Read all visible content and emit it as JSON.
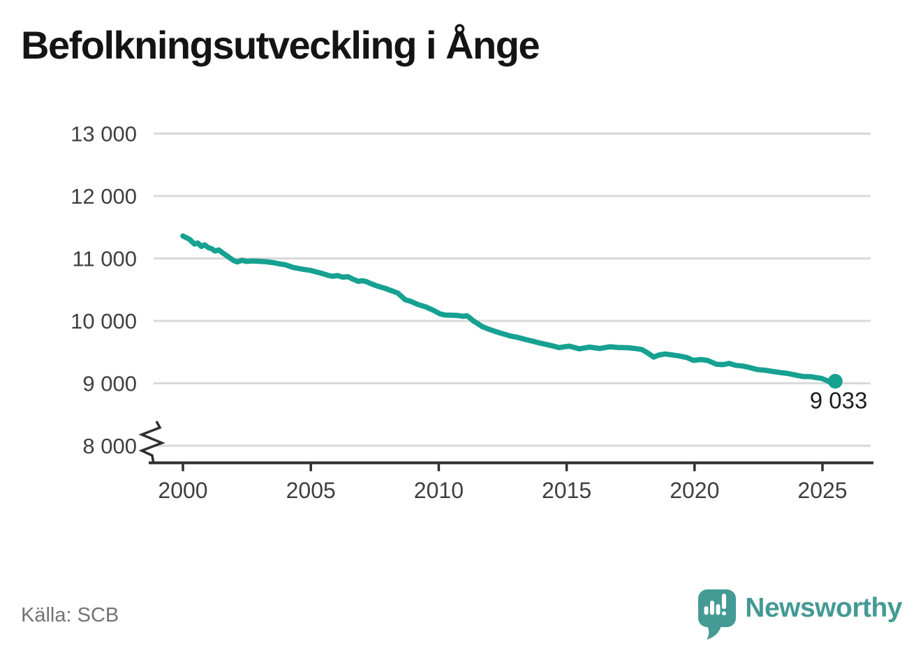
{
  "header": {
    "title": "Befolkningsutveckling i Ånge"
  },
  "footer": {
    "source": "Källa: SCB",
    "brand": "Newsworthy"
  },
  "colors": {
    "line": "#16a191",
    "grid": "#d9d9d9",
    "axis": "#2f2f2f",
    "tick_text": "#3f3f3f",
    "title_text": "#141414",
    "source_text": "#737373",
    "end_label_text": "#1d1d1d",
    "logo": "#449a94",
    "background": "#ffffff"
  },
  "chart_data": {
    "type": "line",
    "title": "Befolkningsutveckling i Ånge",
    "source": "Källa: SCB",
    "xlabel": "",
    "ylabel": "",
    "xlim": [
      1998.7,
      2026.9
    ],
    "ylim": [
      8000,
      13000
    ],
    "y_axis_break": true,
    "grid": "horizontal",
    "legend": "none",
    "x_ticks": [
      {
        "value": 2000,
        "label": "2000"
      },
      {
        "value": 2005,
        "label": "2005"
      },
      {
        "value": 2010,
        "label": "2010"
      },
      {
        "value": 2015,
        "label": "2015"
      },
      {
        "value": 2020,
        "label": "2020"
      },
      {
        "value": 2025,
        "label": "2025"
      }
    ],
    "y_ticks": [
      {
        "value": 13000,
        "label": "13 000"
      },
      {
        "value": 12000,
        "label": "12 000"
      },
      {
        "value": 11000,
        "label": "11 000"
      },
      {
        "value": 10000,
        "label": "10 000"
      },
      {
        "value": 9000,
        "label": "9 000"
      },
      {
        "value": 8000,
        "label": "8 000"
      }
    ],
    "series": [
      {
        "color": "#16a191",
        "end_marker": true,
        "end_label": "9 033",
        "end_value": 9033,
        "points": [
          [
            2000.0,
            11360
          ],
          [
            2000.26,
            11306
          ],
          [
            2000.45,
            11230
          ],
          [
            2000.58,
            11248
          ],
          [
            2000.72,
            11192
          ],
          [
            2000.85,
            11218
          ],
          [
            2001.0,
            11172
          ],
          [
            2001.13,
            11154
          ],
          [
            2001.26,
            11117
          ],
          [
            2001.4,
            11136
          ],
          [
            2001.58,
            11080
          ],
          [
            2001.72,
            11042
          ],
          [
            2001.86,
            11000
          ],
          [
            2002.0,
            10963
          ],
          [
            2002.13,
            10944
          ],
          [
            2002.3,
            10970
          ],
          [
            2002.5,
            10952
          ],
          [
            2002.7,
            10960
          ],
          [
            2003.0,
            10954
          ],
          [
            2003.25,
            10948
          ],
          [
            2003.55,
            10932
          ],
          [
            2003.8,
            10912
          ],
          [
            2004.0,
            10898
          ],
          [
            2004.3,
            10857
          ],
          [
            2004.7,
            10826
          ],
          [
            2005.0,
            10808
          ],
          [
            2005.4,
            10764
          ],
          [
            2005.7,
            10726
          ],
          [
            2005.85,
            10714
          ],
          [
            2006.05,
            10726
          ],
          [
            2006.25,
            10700
          ],
          [
            2006.45,
            10708
          ],
          [
            2006.65,
            10668
          ],
          [
            2006.85,
            10634
          ],
          [
            2007.0,
            10642
          ],
          [
            2007.15,
            10632
          ],
          [
            2007.35,
            10596
          ],
          [
            2007.6,
            10558
          ],
          [
            2007.9,
            10522
          ],
          [
            2008.15,
            10484
          ],
          [
            2008.4,
            10446
          ],
          [
            2008.55,
            10390
          ],
          [
            2008.7,
            10336
          ],
          [
            2008.9,
            10314
          ],
          [
            2009.2,
            10260
          ],
          [
            2009.5,
            10222
          ],
          [
            2009.8,
            10168
          ],
          [
            2010.05,
            10112
          ],
          [
            2010.25,
            10094
          ],
          [
            2010.5,
            10090
          ],
          [
            2010.75,
            10086
          ],
          [
            2010.95,
            10074
          ],
          [
            2011.1,
            10082
          ],
          [
            2011.2,
            10054
          ],
          [
            2011.35,
            10000
          ],
          [
            2011.5,
            9962
          ],
          [
            2011.7,
            9908
          ],
          [
            2011.95,
            9868
          ],
          [
            2012.2,
            9832
          ],
          [
            2012.5,
            9794
          ],
          [
            2012.8,
            9758
          ],
          [
            2013.05,
            9738
          ],
          [
            2013.35,
            9706
          ],
          [
            2013.6,
            9682
          ],
          [
            2014.0,
            9640
          ],
          [
            2014.4,
            9604
          ],
          [
            2014.7,
            9572
          ],
          [
            2015.1,
            9596
          ],
          [
            2015.5,
            9552
          ],
          [
            2015.9,
            9580
          ],
          [
            2016.3,
            9558
          ],
          [
            2016.7,
            9586
          ],
          [
            2017.0,
            9574
          ],
          [
            2017.4,
            9570
          ],
          [
            2017.7,
            9556
          ],
          [
            2017.95,
            9540
          ],
          [
            2018.2,
            9478
          ],
          [
            2018.4,
            9420
          ],
          [
            2018.6,
            9452
          ],
          [
            2018.85,
            9470
          ],
          [
            2019.1,
            9456
          ],
          [
            2019.4,
            9438
          ],
          [
            2019.7,
            9412
          ],
          [
            2019.95,
            9368
          ],
          [
            2020.25,
            9380
          ],
          [
            2020.5,
            9368
          ],
          [
            2020.85,
            9306
          ],
          [
            2021.1,
            9298
          ],
          [
            2021.35,
            9320
          ],
          [
            2021.6,
            9288
          ],
          [
            2021.9,
            9276
          ],
          [
            2022.15,
            9252
          ],
          [
            2022.45,
            9220
          ],
          [
            2022.75,
            9210
          ],
          [
            2023.05,
            9190
          ],
          [
            2023.35,
            9172
          ],
          [
            2023.65,
            9158
          ],
          [
            2023.95,
            9132
          ],
          [
            2024.25,
            9108
          ],
          [
            2024.55,
            9106
          ],
          [
            2024.75,
            9092
          ],
          [
            2024.95,
            9080
          ],
          [
            2025.15,
            9048
          ],
          [
            2025.35,
            9008
          ],
          [
            2025.5,
            9033
          ]
        ]
      }
    ]
  }
}
